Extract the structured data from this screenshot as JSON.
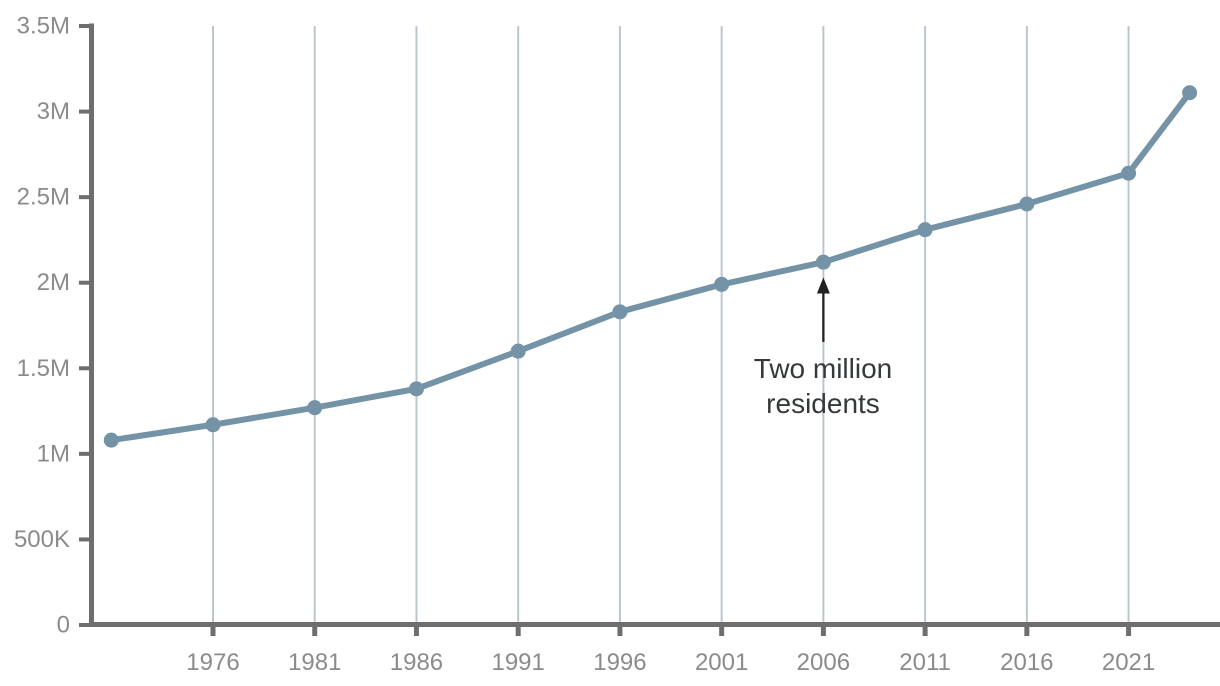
{
  "chart_data": {
    "type": "line",
    "title": "",
    "xlabel": "",
    "ylabel": "",
    "x": [
      1971,
      1976,
      1981,
      1986,
      1991,
      1996,
      2001,
      2006,
      2011,
      2016,
      2021,
      2024
    ],
    "values": [
      1080000,
      1170000,
      1270000,
      1380000,
      1600000,
      1830000,
      1990000,
      2120000,
      2310000,
      2460000,
      2640000,
      3110000
    ],
    "x_ticks": [
      1976,
      1981,
      1986,
      1991,
      1996,
      2001,
      2006,
      2011,
      2016,
      2021
    ],
    "x_tick_labels": [
      "1976",
      "1981",
      "1986",
      "1991",
      "1996",
      "2001",
      "2006",
      "2011",
      "2016",
      "2021"
    ],
    "y_ticks": [
      0,
      500000,
      1000000,
      1500000,
      2000000,
      2500000,
      3000000,
      3500000
    ],
    "y_tick_labels": [
      "0",
      "500K",
      "1M",
      "1.5M",
      "2M",
      "2.5M",
      "3M",
      "3.5M"
    ],
    "xlim": [
      1970,
      2025.5
    ],
    "ylim": [
      0,
      3500000
    ],
    "grid": "vertical",
    "legend": "none",
    "annotation": {
      "lines": [
        "Two million",
        "residents"
      ],
      "x": 2006,
      "y": 2120000
    },
    "colors": {
      "line": "#7493a6",
      "marker": "#7493a6",
      "grid": "#bcc6cd",
      "axis": "#6e6e6e",
      "tick_label": "#8b8b8b",
      "annotation_text": "#35393c",
      "arrow": "#222222",
      "background": "#ffffff"
    }
  }
}
